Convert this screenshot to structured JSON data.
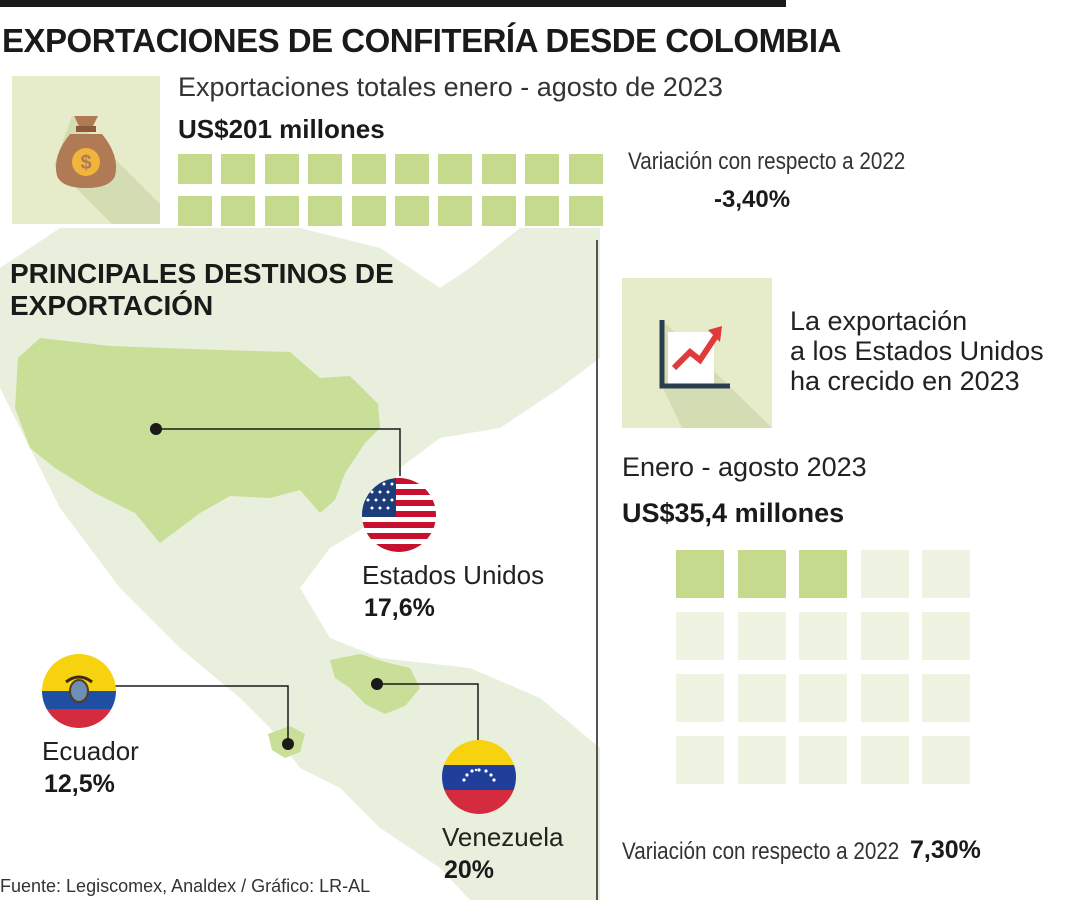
{
  "title": "EXPORTACIONES DE CONFITERÍA DESDE COLOMBIA",
  "totals": {
    "label": "Exportaciones totales enero - agosto de 2023",
    "value": "US$201 millones"
  },
  "variation_total": {
    "label": "Variación con respecto a 2022",
    "value": "-3,40%"
  },
  "destinations": {
    "title_line1": "PRINCIPALES DESTINOS DE",
    "title_line2": "EXPORTACIÓN",
    "items": [
      {
        "country": "Estados Unidos",
        "share": "17,6%"
      },
      {
        "country": "Ecuador",
        "share": "12,5%"
      },
      {
        "country": "Venezuela",
        "share": "20%"
      }
    ]
  },
  "us_growth": {
    "line1": "La exportación",
    "line2": "a los Estados Unidos",
    "line3": "ha crecido en 2023",
    "period": "Enero - agosto 2023",
    "value": "US$35,4 millones",
    "variation_label": "Variación con respecto a 2022",
    "variation_value": "7,30%"
  },
  "source": "Fuente: Legiscomex, Analdex / Gráfico: LR-AL",
  "colors": {
    "accent_green": "#c6da8e",
    "light_green": "#eef3e2",
    "box_bg": "#e6ecc9",
    "map_green": "#c9de96",
    "map_faint": "#e8efdc",
    "line": "#1a1a1a"
  },
  "icons": {
    "money": "money-bag-icon",
    "growth": "growth-chart-icon"
  }
}
